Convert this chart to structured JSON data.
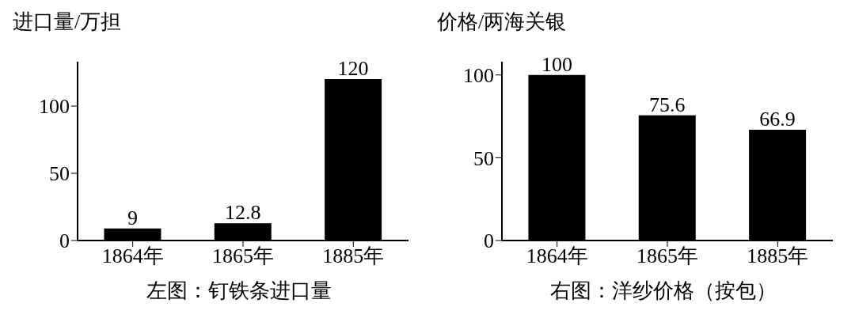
{
  "chart_data": [
    {
      "type": "bar",
      "title": "左图：钉铁条进口量",
      "ylabel": "进口量/万担",
      "categories": [
        "1864年",
        "1865年",
        "1885年"
      ],
      "values": [
        9,
        12.8,
        120
      ],
      "color": "#000000",
      "ylim": [
        0,
        133
      ],
      "yticks": [
        0,
        50,
        100
      ],
      "data_labels": true,
      "grid": false,
      "legend": false
    },
    {
      "type": "bar",
      "title": "右图：洋纱价格（按包）",
      "ylabel": "价格/两海关银",
      "categories": [
        "1864年",
        "1865年",
        "1885年"
      ],
      "values": [
        100,
        75.6,
        66.9
      ],
      "color": "#000000",
      "ylim": [
        0,
        108
      ],
      "yticks": [
        0,
        50,
        100
      ],
      "data_labels": true,
      "grid": false,
      "legend": false
    }
  ]
}
